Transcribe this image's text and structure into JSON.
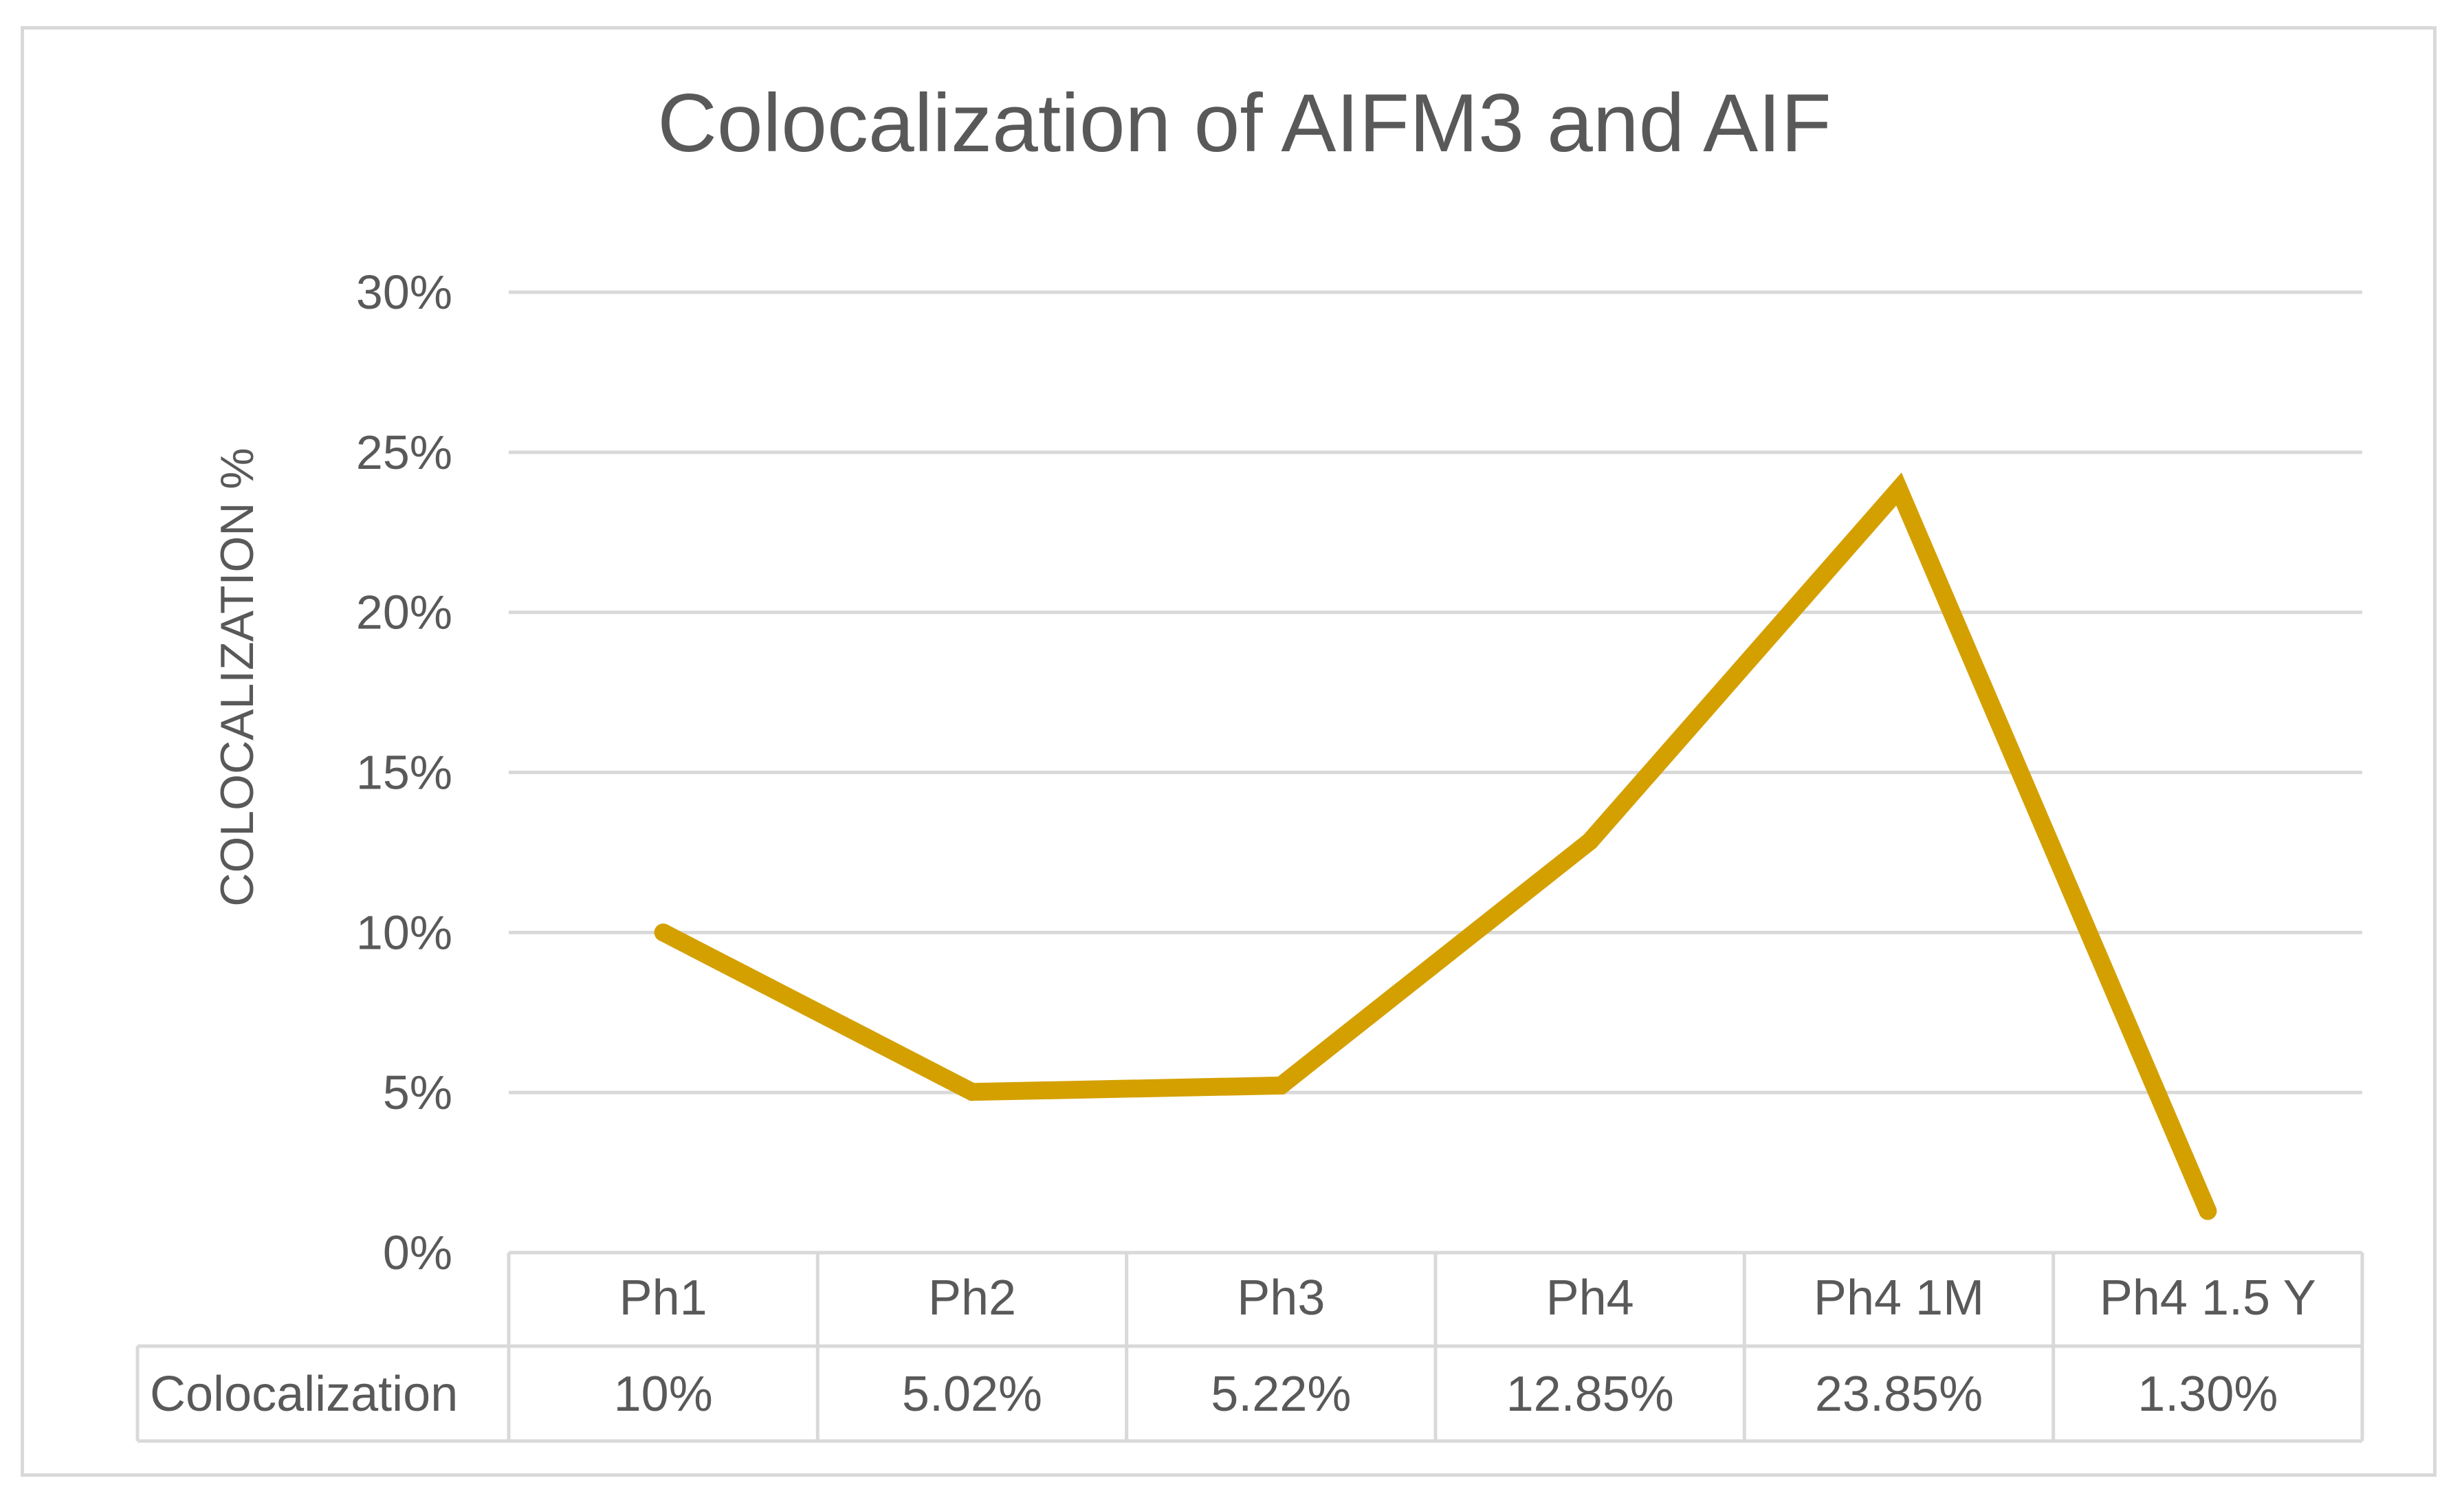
{
  "chart_data": {
    "type": "line",
    "title": "Colocalization of AIFM3 and AIF",
    "xlabel": "",
    "ylabel": "COLOCALIZATION %",
    "categories": [
      "Ph1",
      "Ph2",
      "Ph3",
      "Ph4",
      "Ph4 1M",
      "Ph4 1.5 Y"
    ],
    "series": [
      {
        "name": "Colocalization",
        "values": [
          10,
          5.02,
          5.22,
          12.85,
          23.85,
          1.3
        ],
        "labels": [
          "10%",
          "5.02%",
          "5.22%",
          "12.85%",
          "23.85%",
          "1.30%"
        ]
      }
    ],
    "ylim": [
      0,
      30
    ],
    "yticks": [
      0,
      5,
      10,
      15,
      20,
      25,
      30
    ],
    "ytick_labels": [
      "0%",
      "5%",
      "10%",
      "15%",
      "20%",
      "25%",
      "30%"
    ],
    "grid": true,
    "legend": "data-table-below",
    "colors": {
      "line": "#D4A000",
      "grid": "#d9d9d9",
      "text": "#595959",
      "title": "#595959",
      "border": "#d9d9d9"
    }
  }
}
